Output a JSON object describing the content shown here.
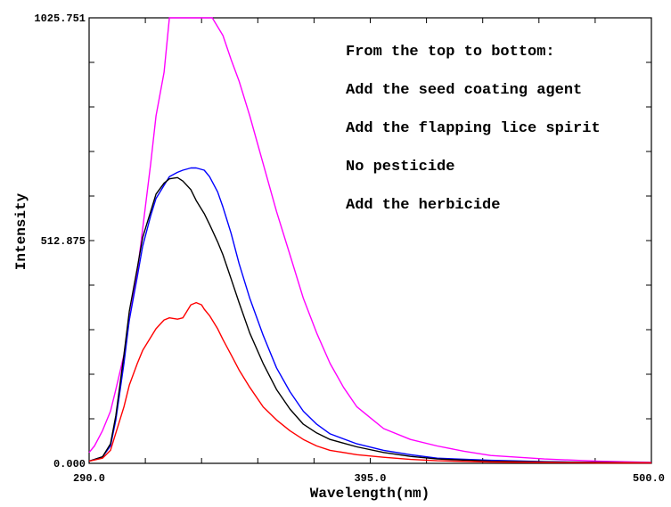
{
  "chart_data": {
    "type": "line",
    "xlabel": "Wavelength(nm)",
    "ylabel": "Intensity",
    "xlim": [
      290.0,
      500.0
    ],
    "ylim": [
      0.0,
      1025.751
    ],
    "x_tick_labels": [
      {
        "value": 290.0,
        "label": "290.0"
      },
      {
        "value": 395.0,
        "label": "395.0"
      },
      {
        "value": 500.0,
        "label": "500.0"
      }
    ],
    "y_tick_labels": [
      {
        "value": 0.0,
        "label": "0.000"
      },
      {
        "value": 512.875,
        "label": "512.875"
      },
      {
        "value": 1025.751,
        "label": "1025.751"
      }
    ],
    "x_minor_ticks": [
      290,
      311,
      332,
      353,
      374,
      395,
      416,
      437,
      458,
      479,
      500
    ],
    "y_minor_ticks": [
      0,
      102.575,
      205.15,
      307.725,
      410.3,
      512.875,
      615.45,
      718.025,
      820.6,
      923.175,
      1025.751
    ],
    "annotations": [
      "From the top to bottom:",
      "Add the seed coating agent",
      "Add the flapping lice spirit",
      "No pesticide",
      "Add the herbicide"
    ],
    "series": [
      {
        "color": "#ff00ff",
        "x": [
          290,
          292,
          295,
          298,
          300,
          303,
          305,
          308,
          310,
          313,
          315,
          318,
          320,
          325,
          330,
          335,
          336,
          340,
          343,
          346,
          350,
          355,
          360,
          365,
          370,
          375,
          380,
          385,
          390,
          395,
          400,
          410,
          420,
          430,
          440,
          460,
          480,
          500
        ],
        "y": [
          25,
          40,
          75,
          120,
          170,
          250,
          330,
          440,
          540,
          690,
          800,
          900,
          1025.751,
          1025.751,
          1025.751,
          1025.751,
          1025.751,
          985,
          930,
          880,
          800,
          690,
          580,
          480,
          380,
          300,
          230,
          175,
          130,
          105,
          80,
          55,
          40,
          28,
          18,
          10,
          5,
          2
        ]
      },
      {
        "color": "#0000ff",
        "x": [
          290,
          295,
          298,
          300,
          303,
          305,
          308,
          310,
          313,
          315,
          318,
          320,
          323,
          325,
          328,
          330,
          333,
          335,
          338,
          340,
          343,
          346,
          350,
          355,
          360,
          365,
          370,
          375,
          380,
          390,
          400,
          410,
          420,
          440,
          460,
          480,
          500
        ],
        "y": [
          5,
          15,
          40,
          100,
          230,
          330,
          430,
          500,
          570,
          610,
          640,
          660,
          670,
          675,
          680,
          680,
          675,
          660,
          625,
          590,
          530,
          460,
          380,
          295,
          220,
          165,
          120,
          90,
          68,
          45,
          30,
          20,
          12,
          7,
          4,
          2,
          1
        ]
      },
      {
        "color": "#000000",
        "x": [
          290,
          295,
          298,
          300,
          303,
          305,
          308,
          310,
          313,
          315,
          318,
          320,
          323,
          325,
          328,
          330,
          333,
          335,
          338,
          340,
          343,
          346,
          350,
          355,
          360,
          365,
          370,
          375,
          380,
          390,
          400,
          410,
          420,
          440,
          460,
          480,
          500
        ],
        "y": [
          5,
          15,
          45,
          110,
          250,
          350,
          450,
          520,
          580,
          620,
          645,
          655,
          658,
          650,
          630,
          605,
          575,
          550,
          510,
          480,
          425,
          370,
          300,
          230,
          170,
          125,
          90,
          70,
          55,
          38,
          25,
          16,
          10,
          5,
          3,
          2,
          1
        ]
      },
      {
        "color": "#ff0000",
        "x": [
          290,
          295,
          298,
          300,
          303,
          305,
          308,
          310,
          313,
          315,
          318,
          320,
          323,
          325,
          327,
          328,
          330,
          332,
          333,
          335,
          338,
          340,
          343,
          346,
          350,
          355,
          360,
          365,
          370,
          375,
          380,
          390,
          400,
          410,
          420,
          440,
          460,
          480,
          500
        ],
        "y": [
          5,
          12,
          30,
          70,
          130,
          180,
          230,
          260,
          290,
          310,
          330,
          335,
          332,
          335,
          355,
          365,
          370,
          365,
          355,
          340,
          310,
          285,
          250,
          215,
          175,
          130,
          100,
          75,
          55,
          40,
          30,
          20,
          14,
          9,
          6,
          3,
          2,
          1,
          1
        ]
      }
    ]
  }
}
